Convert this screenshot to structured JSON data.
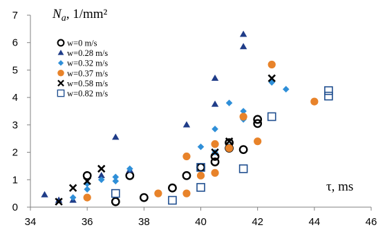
{
  "chart_data": {
    "type": "scatter",
    "title": "",
    "ylabel_main": "N",
    "ylabel_sub": "a",
    "ylabel_unit": ", 1/mm²",
    "xlabel": "τ, ms",
    "xlim": [
      34,
      46
    ],
    "ylim": [
      0,
      7
    ],
    "xticks": [
      "34",
      "36",
      "38",
      "40",
      "42",
      "44",
      "46"
    ],
    "yticks": [
      "0",
      "1",
      "2",
      "3",
      "4",
      "5",
      "6",
      "7"
    ],
    "grid": false,
    "legend_position": "top-left",
    "series": [
      {
        "name": "w=0 m/s",
        "marker": "circle-open",
        "color": "#000000",
        "points": [
          [
            36.0,
            1.15
          ],
          [
            37.0,
            0.2
          ],
          [
            37.5,
            1.15
          ],
          [
            38.0,
            0.35
          ],
          [
            39.0,
            0.7
          ],
          [
            39.5,
            1.15
          ],
          [
            40.0,
            1.45
          ],
          [
            40.5,
            1.65
          ],
          [
            40.5,
            1.85
          ],
          [
            41.0,
            2.35
          ],
          [
            41.0,
            2.15
          ],
          [
            41.5,
            2.1
          ],
          [
            42.0,
            3.2
          ],
          [
            42.0,
            3.05
          ]
        ]
      },
      {
        "name": "w=0.28 m/s",
        "marker": "triangle-filled",
        "color": "#1f3c88",
        "points": [
          [
            34.5,
            0.45
          ],
          [
            35.0,
            0.25
          ],
          [
            35.5,
            0.25
          ],
          [
            36.5,
            1.15
          ],
          [
            37.0,
            2.55
          ],
          [
            37.5,
            1.35
          ],
          [
            39.5,
            3.0
          ],
          [
            40.5,
            3.75
          ],
          [
            40.5,
            4.7
          ],
          [
            41.5,
            5.85
          ],
          [
            41.5,
            6.3
          ]
        ]
      },
      {
        "name": "w=0.32 m/s",
        "marker": "diamond-filled",
        "color": "#2f8fd8",
        "points": [
          [
            35.5,
            0.35
          ],
          [
            36.0,
            0.85
          ],
          [
            36.0,
            0.65
          ],
          [
            36.5,
            1.0
          ],
          [
            37.0,
            0.95
          ],
          [
            37.0,
            1.1
          ],
          [
            37.5,
            1.4
          ],
          [
            40.0,
            2.2
          ],
          [
            40.5,
            2.85
          ],
          [
            40.5,
            2.0
          ],
          [
            41.0,
            3.8
          ],
          [
            41.0,
            2.2
          ],
          [
            41.5,
            3.5
          ],
          [
            41.5,
            3.2
          ],
          [
            42.5,
            4.55
          ],
          [
            43.0,
            4.3
          ]
        ]
      },
      {
        "name": "w=0.37 m/s",
        "marker": "circle-filled",
        "color": "#e8832a",
        "points": [
          [
            36.0,
            0.35
          ],
          [
            38.5,
            0.5
          ],
          [
            39.5,
            0.5
          ],
          [
            39.5,
            1.85
          ],
          [
            40.0,
            1.15
          ],
          [
            40.5,
            1.25
          ],
          [
            40.5,
            2.3
          ],
          [
            41.0,
            2.15
          ],
          [
            41.5,
            3.3
          ],
          [
            42.0,
            2.4
          ],
          [
            42.5,
            5.2
          ],
          [
            44.0,
            3.85
          ]
        ]
      },
      {
        "name": "w=0.58 m/s",
        "marker": "x",
        "color": "#000000",
        "points": [
          [
            35.0,
            0.2
          ],
          [
            35.5,
            0.7
          ],
          [
            36.0,
            0.95
          ],
          [
            36.5,
            1.4
          ],
          [
            40.5,
            2.0
          ],
          [
            41.0,
            2.4
          ],
          [
            42.5,
            4.7
          ]
        ]
      },
      {
        "name": "w=0.82 m/s",
        "marker": "square-open",
        "color": "#1f4e8f",
        "points": [
          [
            37.0,
            0.5
          ],
          [
            39.0,
            0.25
          ],
          [
            40.0,
            0.72
          ],
          [
            40.0,
            1.45
          ],
          [
            41.5,
            1.4
          ],
          [
            42.5,
            3.3
          ],
          [
            44.5,
            4.05
          ],
          [
            44.5,
            4.25
          ]
        ]
      }
    ]
  }
}
